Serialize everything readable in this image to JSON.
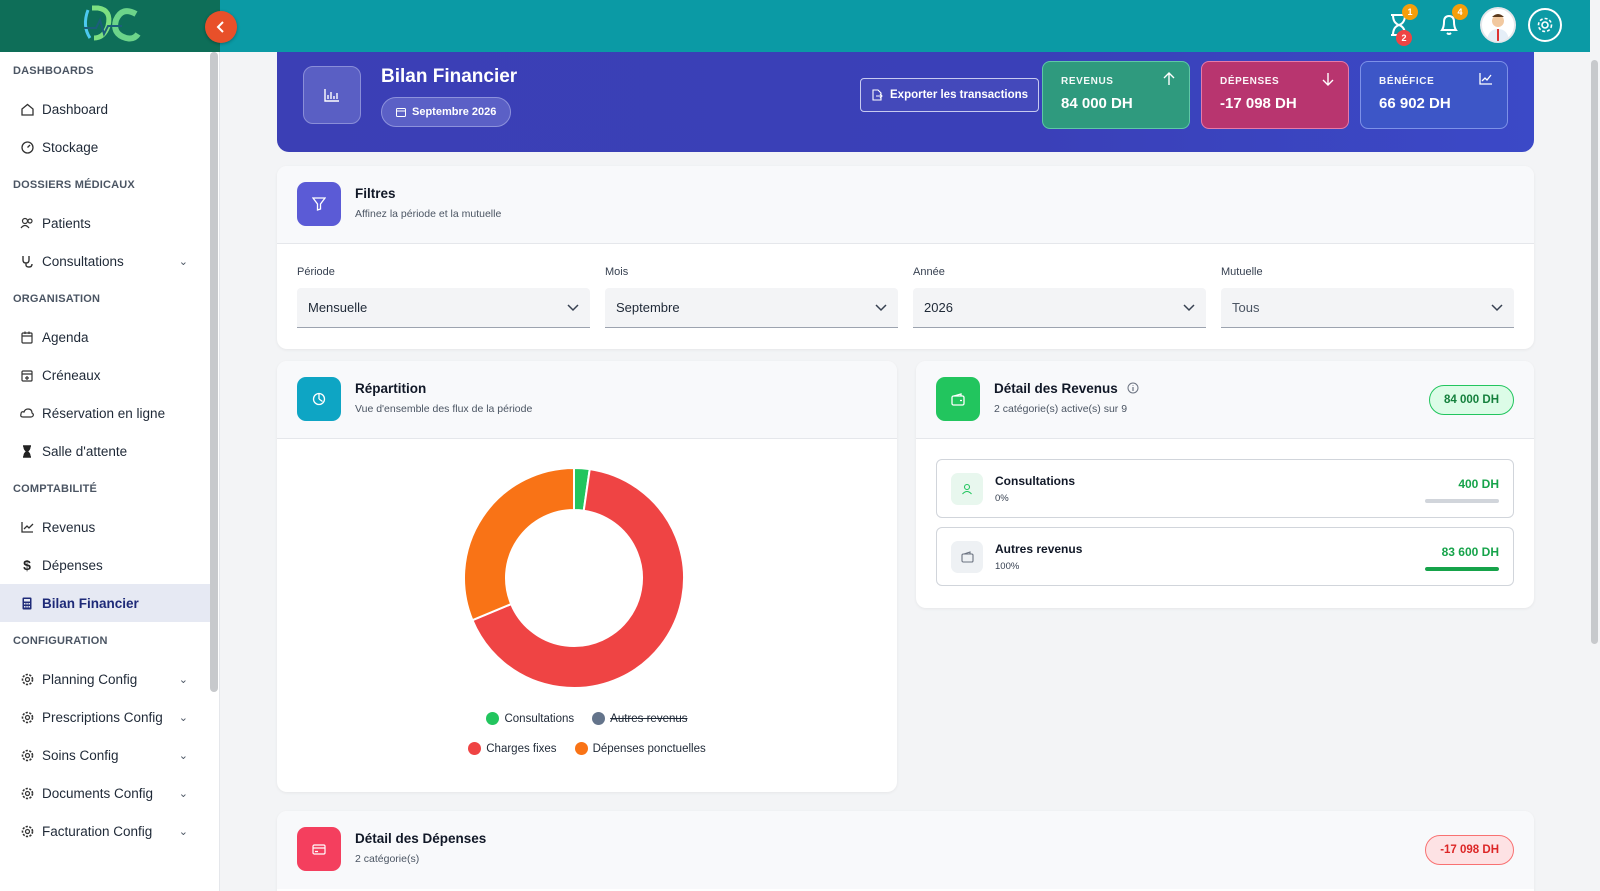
{
  "colors": {
    "topbar": "#0b9aa5",
    "accent_indigo": "#3b3fb5",
    "revenue_green": "#22c55e",
    "charges_red": "#ef4444",
    "depenses_orange": "#f97316",
    "hidden_gray": "#64748b"
  },
  "topbar": {
    "icons": [
      "hourglass-icon",
      "bell-icon",
      "avatar",
      "settings-icon"
    ],
    "hourglass_badge_top": "1",
    "hourglass_badge_bottom": "2",
    "bell_badge": "4"
  },
  "sidebar": {
    "sections": [
      {
        "title": "DASHBOARDS",
        "items": [
          {
            "label": "Dashboard",
            "icon": "home-icon"
          },
          {
            "label": "Stockage",
            "icon": "gauge-icon"
          }
        ]
      },
      {
        "title": "DOSSIERS MÉDICAUX",
        "items": [
          {
            "label": "Patients",
            "icon": "users-icon"
          },
          {
            "label": "Consultations",
            "icon": "stethoscope-icon",
            "expandable": true
          }
        ]
      },
      {
        "title": "ORGANISATION",
        "items": [
          {
            "label": "Agenda",
            "icon": "calendar-icon"
          },
          {
            "label": "Créneaux",
            "icon": "calendar-plus-icon"
          },
          {
            "label": "Réservation en ligne",
            "icon": "cloud-icon"
          },
          {
            "label": "Salle d'attente",
            "icon": "hourglass-icon"
          }
        ]
      },
      {
        "title": "COMPTABILITÉ",
        "items": [
          {
            "label": "Revenus",
            "icon": "chart-line-icon"
          },
          {
            "label": "Dépenses",
            "icon": "dollar-icon"
          },
          {
            "label": "Bilan Financier",
            "icon": "calculator-icon",
            "active": true
          }
        ]
      },
      {
        "title": "CONFIGURATION",
        "items": [
          {
            "label": "Planning Config",
            "icon": "gear-icon",
            "expandable": true
          },
          {
            "label": "Prescriptions Config",
            "icon": "gear-icon",
            "expandable": true
          },
          {
            "label": "Soins Config",
            "icon": "gear-icon",
            "expandable": true
          },
          {
            "label": "Documents Config",
            "icon": "gear-icon",
            "expandable": true
          },
          {
            "label": "Facturation Config",
            "icon": "gear-icon",
            "expandable": true
          }
        ]
      }
    ]
  },
  "header": {
    "title": "Bilan Financier",
    "period_chip": "Septembre 2026",
    "export_label": "Exporter les transactions",
    "kpis": {
      "revenus": {
        "label": "REVENUS",
        "value": "84 000 DH"
      },
      "depenses": {
        "label": "DÉPENSES",
        "value": "-17 098 DH"
      },
      "benefice": {
        "label": "BÉNÉFICE",
        "value": "66 902 DH"
      }
    }
  },
  "filters": {
    "title": "Filtres",
    "subtitle": "Affinez la période et la mutuelle",
    "fields": [
      {
        "label": "Période",
        "value": "Mensuelle"
      },
      {
        "label": "Mois",
        "value": "Septembre"
      },
      {
        "label": "Année",
        "value": "2026"
      },
      {
        "label": "Mutuelle",
        "value": "Tous"
      }
    ]
  },
  "repartition": {
    "title": "Répartition",
    "subtitle": "Vue d'ensemble des flux de la période",
    "legend": [
      {
        "label": "Consultations",
        "color": "#22c55e",
        "hidden": false
      },
      {
        "label": "Autres revenus",
        "color": "#64748b",
        "hidden": true
      },
      {
        "label": "Charges fixes",
        "color": "#ef4444",
        "hidden": false
      },
      {
        "label": "Dépenses ponctuelles",
        "color": "#f97316",
        "hidden": false
      }
    ]
  },
  "chart_data": {
    "type": "pie",
    "variant": "doughnut",
    "categories": [
      "Consultations",
      "Charges fixes",
      "Dépenses ponctuelles"
    ],
    "values": [
      400,
      11628,
      5470
    ],
    "colors": [
      "#22c55e",
      "#ef4444",
      "#f97316"
    ],
    "hidden_series": [
      "Autres revenus"
    ],
    "legend_position": "bottom"
  },
  "revenus_detail": {
    "title": "Détail des Revenus",
    "subtitle": "2 catégorie(s) active(s) sur 9",
    "total": "84 000 DH",
    "rows": [
      {
        "name": "Consultations",
        "pct": "0%",
        "amount": "400 DH",
        "fraction": 0,
        "icon": "user-icon"
      },
      {
        "name": "Autres revenus",
        "pct": "100%",
        "amount": "83 600 DH",
        "fraction": 1,
        "icon": "wallet-icon"
      }
    ]
  },
  "depenses_detail": {
    "title": "Détail des Dépenses",
    "subtitle": "2 catégorie(s)",
    "total": "-17 098 DH"
  }
}
